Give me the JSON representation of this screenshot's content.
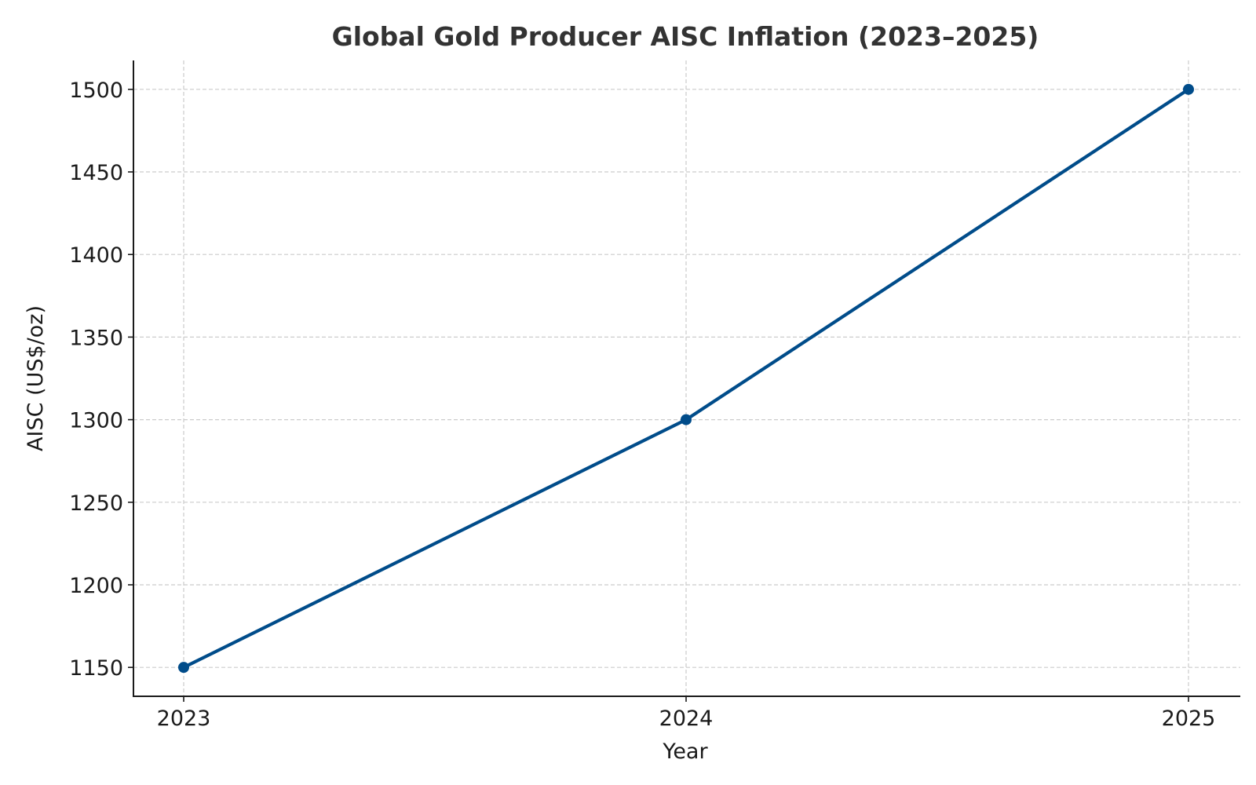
{
  "chart_data": {
    "type": "line",
    "title": "Global Gold Producer AISC Inflation (2023–2025)",
    "xlabel": "Year",
    "ylabel": "AISC (US$/oz)",
    "categories": [
      "2023",
      "2024",
      "2025"
    ],
    "series": [
      {
        "values": [
          1150,
          1300,
          1500
        ],
        "color": "#004c8a",
        "marker": "circle"
      }
    ],
    "yticks": [
      1150,
      1200,
      1250,
      1300,
      1350,
      1400,
      1450,
      1500
    ],
    "ylim": [
      1132.5,
      1517.5
    ],
    "grid": true,
    "legend": "none",
    "colors": {
      "line": "#004c8a",
      "grid": "#cccccc",
      "axis": "#1a1a1a",
      "title": "#333333"
    }
  }
}
